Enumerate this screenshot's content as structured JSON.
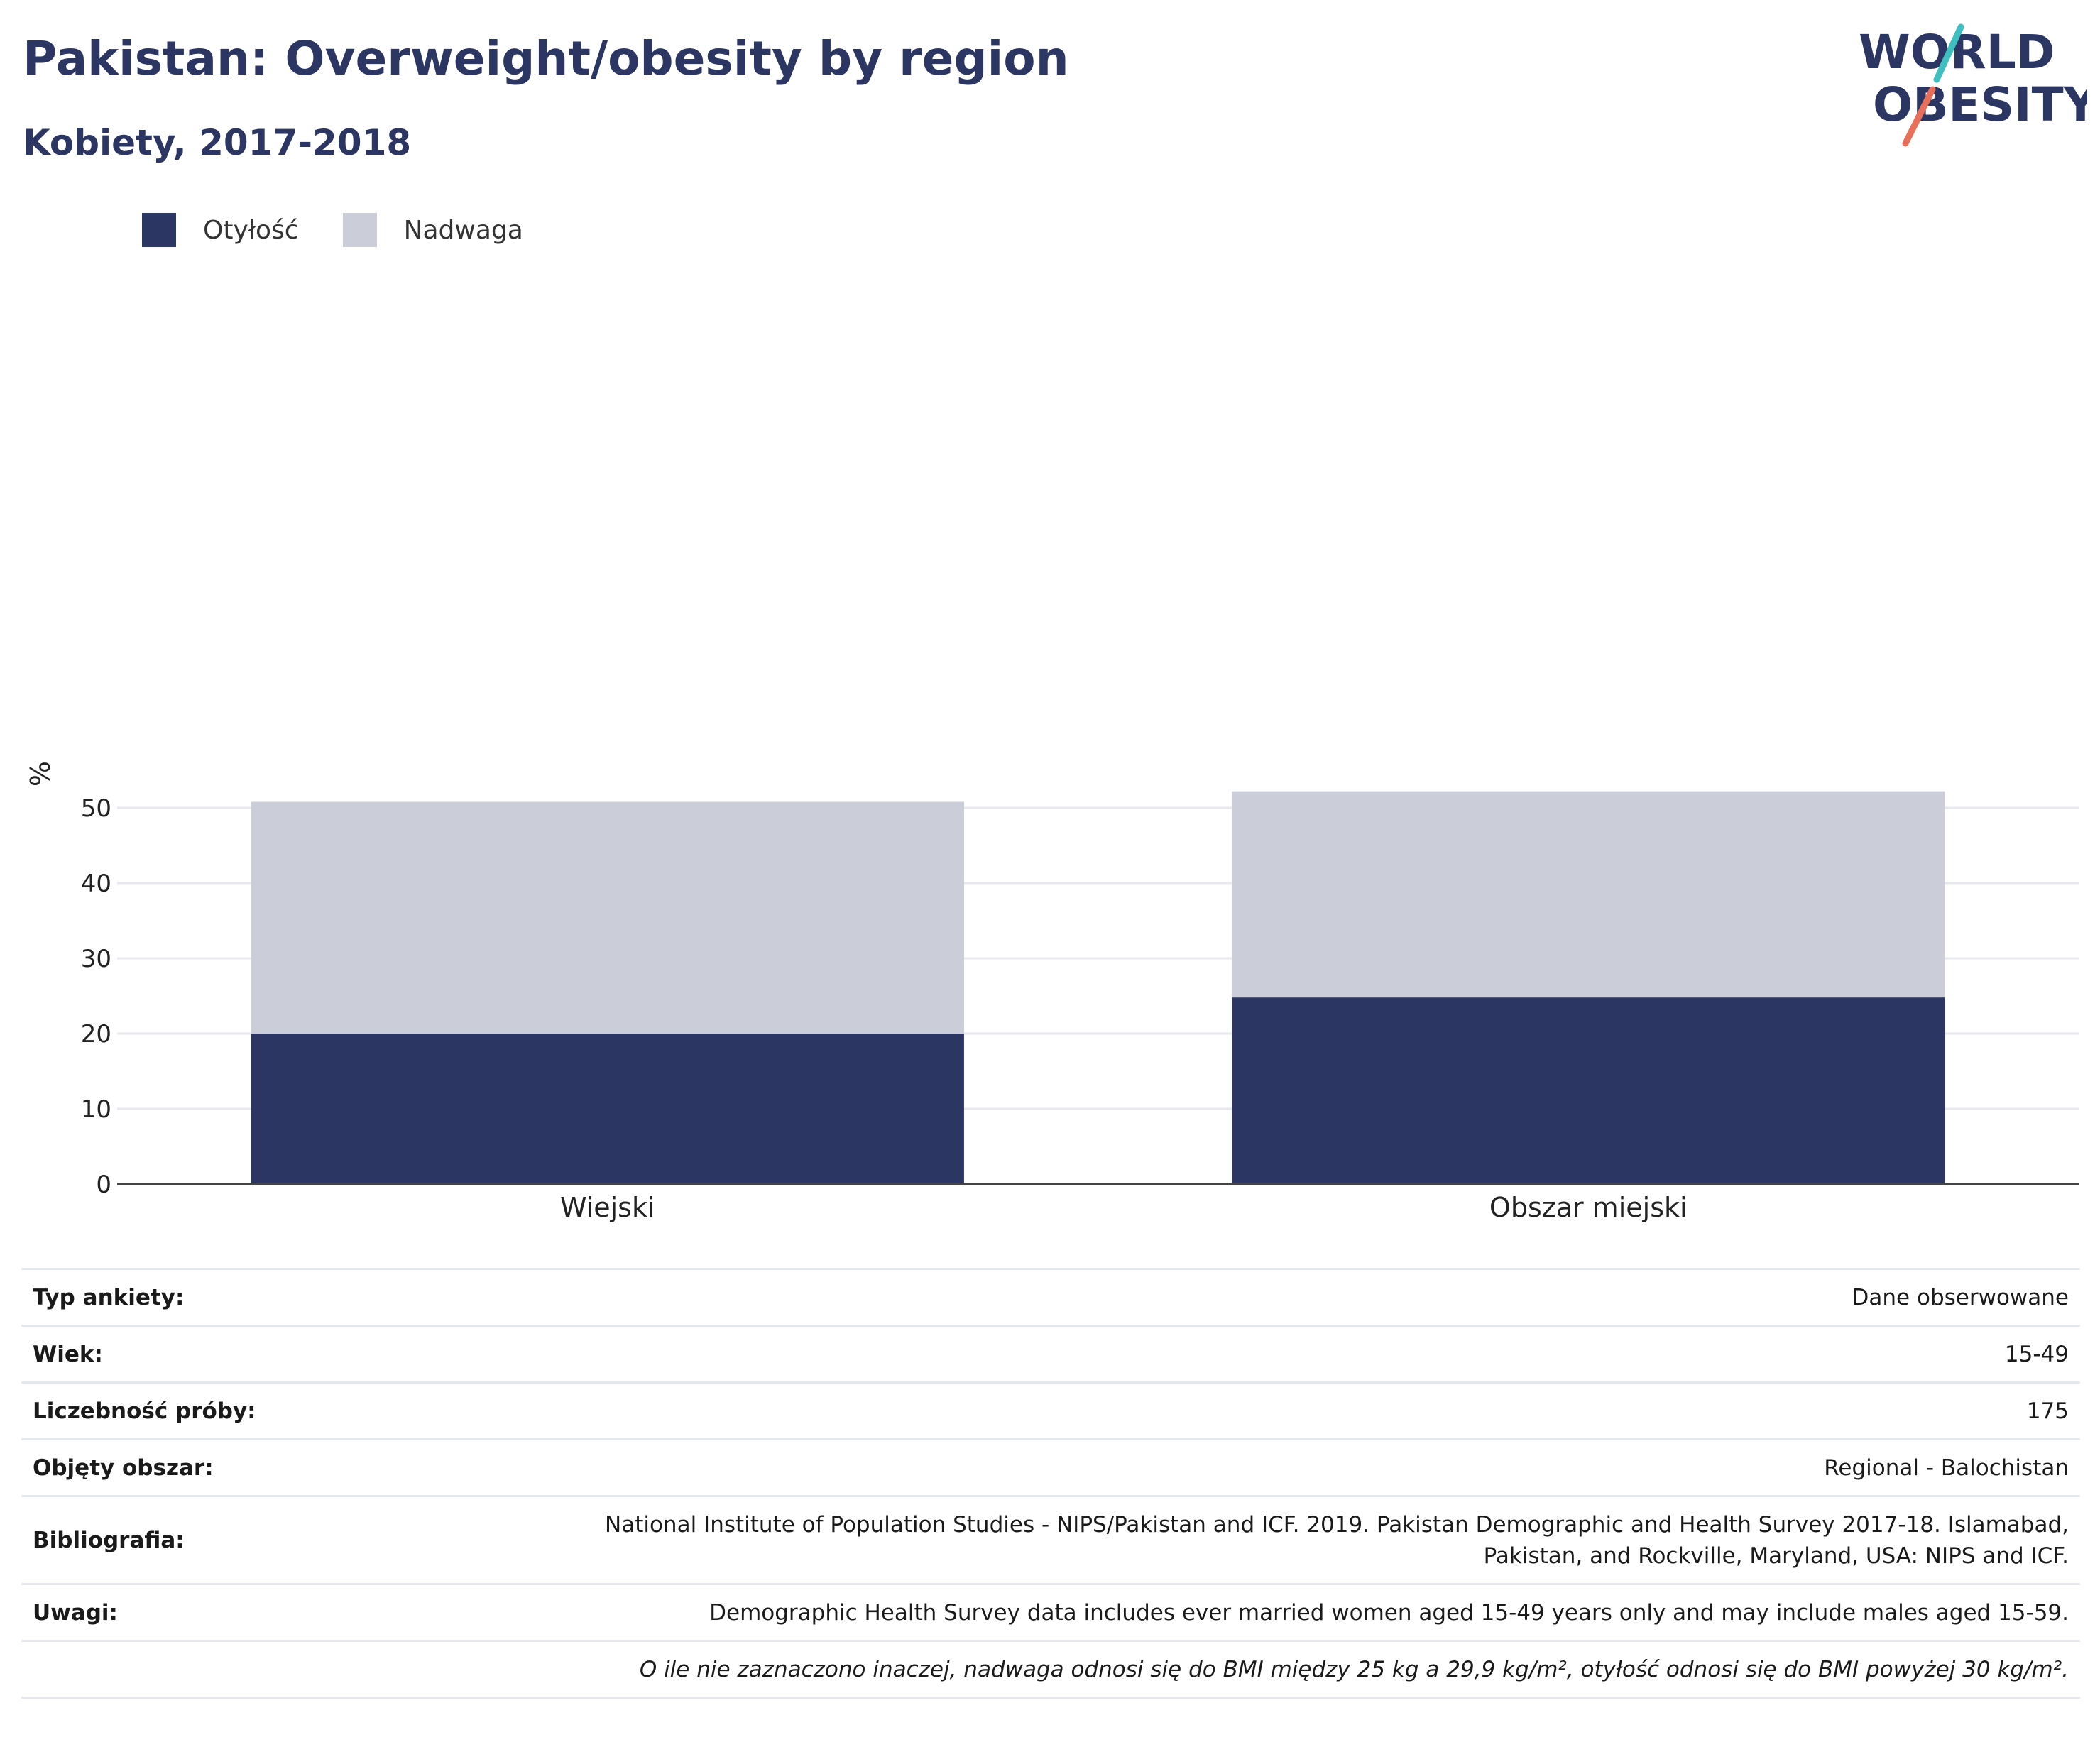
{
  "header": {
    "title": "Pakistan: Overweight/obesity by region",
    "subtitle": "Kobiety, 2017-2018"
  },
  "logo": {
    "line1": "WORLD",
    "line2": "OBESITY",
    "slash_colors": [
      "#3fbfbf",
      "#e8705a"
    ]
  },
  "colors": {
    "obesity": "#2b3663",
    "overweight": "#cbcdd9",
    "title": "#2b3663",
    "grid": "#e8e9ee",
    "axis": "#444444"
  },
  "legend": {
    "items": [
      {
        "label": "Otyłość",
        "color": "#2b3663"
      },
      {
        "label": "Nadwaga",
        "color": "#cbcdd9"
      }
    ]
  },
  "chart_data": {
    "type": "bar",
    "stacked": true,
    "categories": [
      "Wiejski",
      "Obszar miejski"
    ],
    "series": [
      {
        "name": "Otyłość",
        "values": [
          20.0,
          24.8
        ]
      },
      {
        "name": "Nadwaga",
        "values": [
          30.8,
          27.4
        ]
      }
    ],
    "ylabel": "%",
    "ylim": [
      0,
      55
    ],
    "yticks": [
      0,
      10,
      20,
      30,
      40,
      50
    ],
    "grid": true,
    "legend_position": "top-left"
  },
  "info": {
    "rows": [
      {
        "label": "Typ ankiety:",
        "value": "Dane obserwowane"
      },
      {
        "label": "Wiek:",
        "value": "15-49"
      },
      {
        "label": "Liczebność próby:",
        "value": "175"
      },
      {
        "label": "Objęty obszar:",
        "value": "Regional - Balochistan"
      },
      {
        "label": "Bibliografia:",
        "value_line1": "National Institute of Population Studies - NIPS/Pakistan and ICF. 2019. Pakistan Demographic and Health Survey 2017-18. Islamabad,",
        "value_line2": "Pakistan, and Rockville, Maryland, USA: NIPS and ICF."
      },
      {
        "label": "Uwagi:",
        "value": "Demographic Health Survey data includes ever married women aged 15-49 years only and may include males aged 15-59."
      }
    ],
    "footnote": "O ile nie zaznaczono inaczej, nadwaga odnosi się do BMI między 25 kg a 29,9 kg/m², otyłość odnosi się do BMI powyżej 30 kg/m²."
  }
}
